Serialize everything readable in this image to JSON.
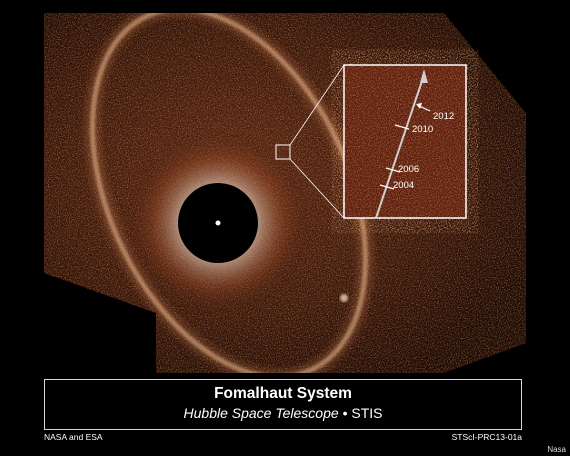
{
  "image": {
    "title": "Fomalhaut System",
    "subtitle_italic": "Hubble Space Telescope",
    "subtitle_separator": "•",
    "subtitle_instrument": "STIS",
    "credit_left": "NASA and ESA",
    "credit_right": "STScI-PRC13-01a",
    "watermark": "Nasa"
  },
  "inset": {
    "years": [
      "2012",
      "2010",
      "2006",
      "2004"
    ]
  },
  "colors": {
    "background": "#000000",
    "dust": "#b5532a",
    "ring": "#f2c9a0",
    "frame": "#d9d9d9"
  }
}
